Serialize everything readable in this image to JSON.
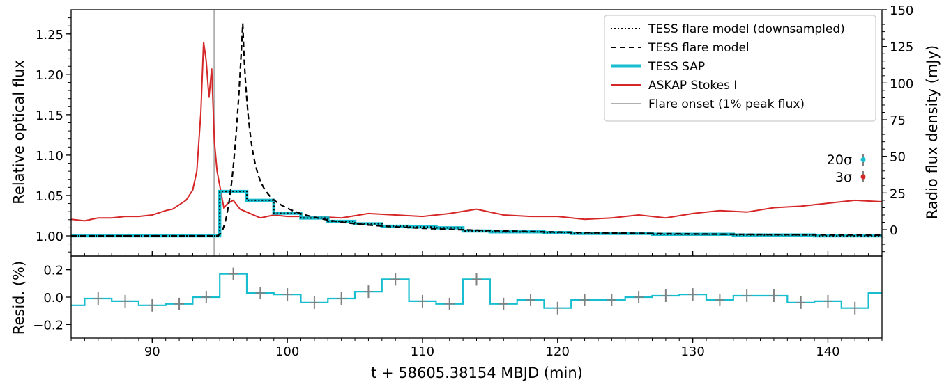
{
  "chart_data": [
    {
      "type": "line",
      "xlim": [
        84,
        144
      ],
      "ylim_left": [
        0.975,
        1.28
      ],
      "ylim_right": [
        -18,
        150
      ],
      "ylabel_left": "Relative optical flux",
      "ylabel_right": "Radio flux density (mJy)",
      "y_ticks_left": [
        "1.00",
        "1.05",
        "1.10",
        "1.15",
        "1.20",
        "1.25"
      ],
      "y_ticks_right": [
        "0",
        "25",
        "50",
        "75",
        "100",
        "125",
        "150"
      ],
      "legend_position": "top-right",
      "legend": [
        {
          "label": "TESS flare model (downsampled)",
          "style": "dotted",
          "color": "#000000"
        },
        {
          "label": "TESS flare model",
          "style": "dashed",
          "color": "#000000"
        },
        {
          "label": "TESS SAP",
          "style": "thick",
          "color": "#17becf"
        },
        {
          "label": "ASKAP Stokes I",
          "style": "solid",
          "color": "#d62728"
        },
        {
          "label": "Flare onset (1% peak flux)",
          "style": "solid",
          "color": "#b0b0b0"
        }
      ],
      "error_labels": [
        "20σ",
        "3σ"
      ],
      "flare_onset_x": 94.6,
      "tess_sap": {
        "bin_edges": [
          84,
          95,
          97,
          99,
          101,
          103,
          105,
          107,
          109,
          111,
          113,
          115,
          117,
          119,
          121,
          123,
          125,
          127,
          129,
          131,
          133,
          135,
          137,
          139,
          141,
          143,
          144
        ],
        "values": [
          1.0,
          1.055,
          1.044,
          1.028,
          1.022,
          1.018,
          1.015,
          1.012,
          1.011,
          1.01,
          1.006,
          1.005,
          1.005,
          1.004,
          1.003,
          1.003,
          1.003,
          1.002,
          1.002,
          1.002,
          1.001,
          1.001,
          1.001,
          1.0,
          1.0,
          1.0
        ]
      },
      "flare_model_peak": {
        "x": 96.7,
        "y": 1.263
      },
      "askap_stokes_i": {
        "x": [
          84,
          85,
          86,
          87,
          88,
          89,
          90,
          91,
          91.5,
          92,
          92.5,
          93,
          93.3,
          93.6,
          93.8,
          94.0,
          94.2,
          94.4,
          94.6,
          94.8,
          95.0,
          95.3,
          95.6,
          96.0,
          96.5,
          97,
          98,
          99,
          100,
          102,
          104,
          106,
          108,
          110,
          112,
          114,
          116,
          118,
          120,
          122,
          124,
          126,
          128,
          130,
          132,
          134,
          136,
          138,
          140,
          142,
          144
        ],
        "y": [
          7,
          6,
          8,
          8,
          9,
          9,
          10,
          13,
          14,
          17,
          20,
          27,
          40,
          80,
          128,
          115,
          90,
          110,
          60,
          40,
          30,
          15,
          18,
          20,
          14,
          12,
          8,
          10,
          9,
          9,
          8,
          11,
          10,
          9,
          11,
          14,
          10,
          9,
          9,
          7,
          8,
          10,
          8,
          11,
          13,
          12,
          15,
          16,
          18,
          20,
          19
        ]
      }
    },
    {
      "type": "line",
      "xlim": [
        84,
        144
      ],
      "ylim": [
        -0.3,
        0.3
      ],
      "xlabel": "t + 58605.38154 MBJD (min)",
      "ylabel": "Resid. (%)",
      "x_ticks": [
        "90",
        "100",
        "110",
        "120",
        "130",
        "140"
      ],
      "y_ticks": [
        "−0.2",
        "0.0",
        "0.2"
      ],
      "bin_edges": [
        84,
        85,
        87,
        89,
        91,
        93,
        95,
        97,
        99,
        101,
        103,
        105,
        107,
        109,
        111,
        113,
        115,
        117,
        119,
        121,
        123,
        125,
        127,
        129,
        131,
        133,
        135,
        137,
        139,
        141,
        143,
        144
      ],
      "values": [
        -0.06,
        -0.01,
        -0.03,
        -0.06,
        -0.05,
        0.0,
        0.17,
        0.03,
        0.02,
        -0.04,
        -0.01,
        0.04,
        0.13,
        -0.03,
        -0.05,
        0.13,
        -0.05,
        -0.02,
        -0.08,
        -0.02,
        -0.02,
        0.0,
        0.01,
        0.02,
        -0.02,
        0.01,
        0.01,
        -0.04,
        -0.03,
        -0.08,
        0.03
      ],
      "error_x": [
        86,
        88,
        90,
        92,
        94,
        96,
        98,
        100,
        102,
        104,
        106,
        108,
        110,
        112,
        114,
        116,
        118,
        120,
        122,
        124,
        126,
        128,
        130,
        132,
        134,
        136,
        138,
        140,
        142
      ],
      "error_y": [
        -0.01,
        -0.03,
        -0.06,
        -0.05,
        0.0,
        0.17,
        0.03,
        0.02,
        -0.04,
        -0.01,
        0.04,
        0.13,
        -0.03,
        -0.05,
        0.13,
        -0.05,
        -0.02,
        -0.08,
        -0.02,
        -0.02,
        0.0,
        0.01,
        0.02,
        -0.02,
        0.01,
        0.01,
        -0.04,
        -0.03,
        -0.08
      ]
    }
  ],
  "colors": {
    "tess": "#17becf",
    "askap": "#d62728",
    "onset": "#b0b0b0",
    "model": "#000000",
    "errbar": "#808080"
  }
}
